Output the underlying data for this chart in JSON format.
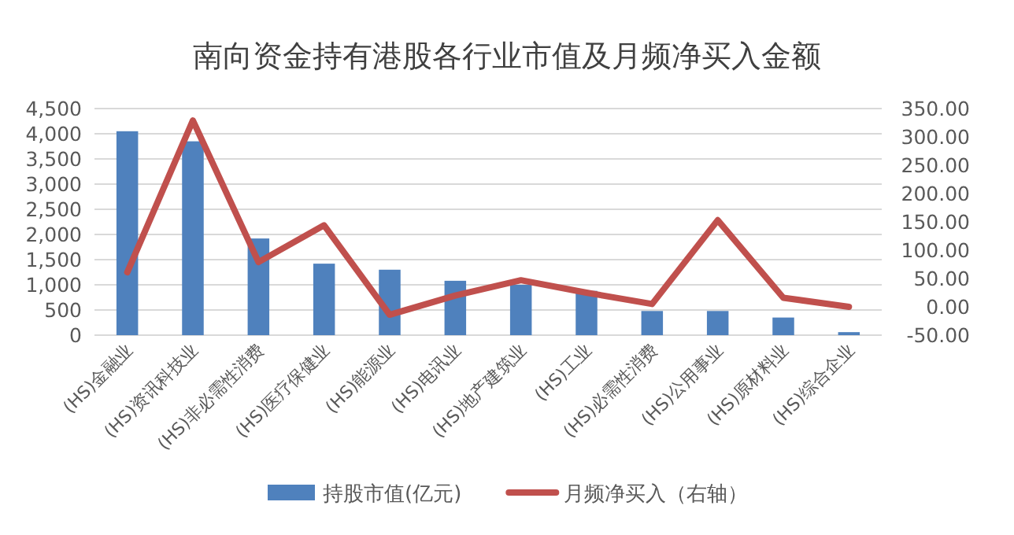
{
  "chart_data": {
    "type": "bar",
    "title": "南向资金持有港股各行业市值及月频净买入金额",
    "categories": [
      "(HS)金融业",
      "(HS)资讯科技业",
      "(HS)非必需性消费",
      "(HS)医疗保健业",
      "(HS)能源业",
      "(HS)电讯业",
      "(HS)地产建筑业",
      "(HS)工业",
      "(HS)必需性消费",
      "(HS)公用事业",
      "(HS)原材料业",
      "(HS)综合企业"
    ],
    "series": [
      {
        "name": "持股市值(亿元)",
        "color": "#4f81bd",
        "values": [
          4050,
          3850,
          1920,
          1420,
          1300,
          1080,
          1000,
          880,
          480,
          480,
          350,
          60
        ]
      },
      {
        "name": "月频净买入（右轴）",
        "type": "line",
        "axis": "y2",
        "color": "#c0504d",
        "values": [
          61,
          329,
          79,
          144,
          -14,
          20,
          47,
          25,
          5,
          153,
          16,
          0
        ]
      }
    ],
    "ylim": [
      0,
      4500
    ],
    "yticks": [
      0,
      {
        "value": 500,
        "label": "500"
      },
      {
        "value": 1000,
        "label": "1,000"
      },
      {
        "value": 1500,
        "label": "1,500"
      },
      {
        "value": 2000,
        "label": "2,000"
      },
      {
        "value": 2500,
        "label": "2,500"
      },
      {
        "value": 3000,
        "label": "3,000"
      },
      {
        "value": 3500,
        "label": "3,500"
      },
      {
        "value": 4000,
        "label": "4,000"
      },
      {
        "value": 4500,
        "label": "4,500"
      }
    ],
    "y2lim": [
      -50,
      350
    ],
    "y2ticks": [
      {
        "value": -50,
        "label": "-50.00"
      },
      {
        "value": 0,
        "label": "0.00"
      },
      {
        "value": 50,
        "label": "50.00"
      },
      {
        "value": 100,
        "label": "100.00"
      },
      {
        "value": 150,
        "label": "150.00"
      },
      {
        "value": 200,
        "label": "200.00"
      },
      {
        "value": 250,
        "label": "250.00"
      },
      {
        "value": 300,
        "label": "300.00"
      },
      {
        "value": 350,
        "label": "350.00"
      }
    ],
    "grid": "y",
    "legend": "bottom",
    "marker": "none"
  }
}
